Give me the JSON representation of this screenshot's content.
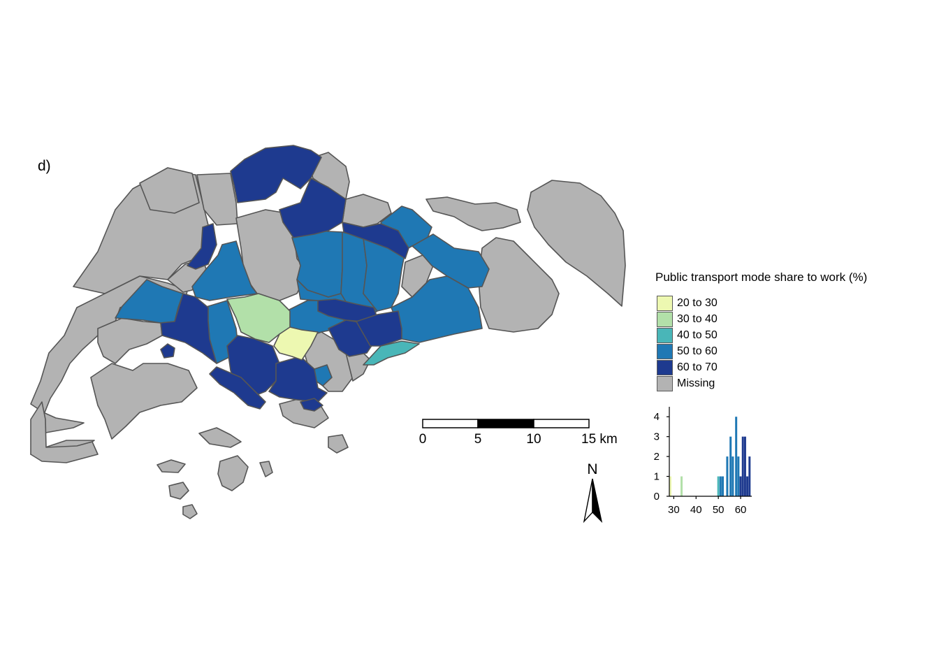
{
  "panel_label": "d)",
  "legend": {
    "title": "Public transport mode share to work (%)",
    "items": [
      {
        "label": "20 to 30",
        "color": "#edf8b1"
      },
      {
        "label": "30 to 40",
        "color": "#b2e0a9"
      },
      {
        "label": "40 to 50",
        "color": "#49b6b8"
      },
      {
        "label": "50 to 60",
        "color": "#1f78b4"
      },
      {
        "label": "60 to 70",
        "color": "#1e3a8f"
      },
      {
        "label": "Missing",
        "color": "#b3b3b3"
      }
    ]
  },
  "scale_bar": {
    "ticks": [
      "0",
      "5",
      "10",
      "15 km"
    ]
  },
  "north_arrow": {
    "label": "N"
  },
  "chart_data": {
    "type": "bar",
    "x_ticks": [
      "30",
      "40",
      "50",
      "60"
    ],
    "y_ticks": [
      "0",
      "1",
      "2",
      "3",
      "4"
    ],
    "xlim": [
      28,
      65
    ],
    "ylim": [
      0,
      4.5
    ],
    "bars": [
      {
        "x": 28.5,
        "count": 1,
        "color": "#edf8b1"
      },
      {
        "x": 33.5,
        "count": 1,
        "color": "#b2e0a9"
      },
      {
        "x": 50.0,
        "count": 1,
        "color": "#49b6b8"
      },
      {
        "x": 51.0,
        "count": 1,
        "color": "#1f78b4"
      },
      {
        "x": 52.0,
        "count": 1,
        "color": "#1f78b4"
      },
      {
        "x": 54.0,
        "count": 2,
        "color": "#1f78b4"
      },
      {
        "x": 55.5,
        "count": 3,
        "color": "#1f78b4"
      },
      {
        "x": 56.5,
        "count": 2,
        "color": "#1f78b4"
      },
      {
        "x": 58.0,
        "count": 4,
        "color": "#1f78b4"
      },
      {
        "x": 59.0,
        "count": 2,
        "color": "#1f78b4"
      },
      {
        "x": 60.0,
        "count": 1,
        "color": "#1e3a8f"
      },
      {
        "x": 61.0,
        "count": 3,
        "color": "#1e3a8f"
      },
      {
        "x": 62.0,
        "count": 3,
        "color": "#1e3a8f"
      },
      {
        "x": 63.0,
        "count": 1,
        "color": "#1e3a8f"
      },
      {
        "x": 64.0,
        "count": 2,
        "color": "#1e3a8f"
      }
    ]
  }
}
